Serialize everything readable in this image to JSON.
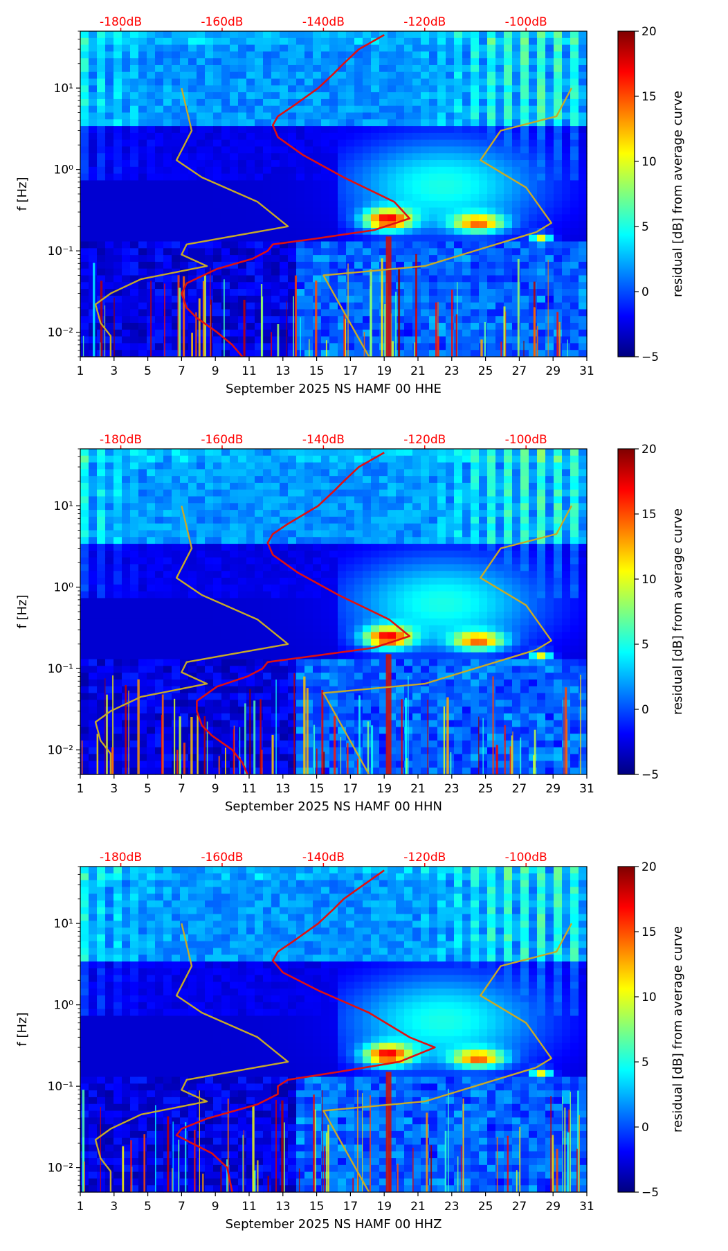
{
  "colors": {
    "colormap": [
      "#00007f",
      "#0000ff",
      "#007fff",
      "#00ffff",
      "#7fff7f",
      "#ffff00",
      "#ff7f00",
      "#ff0000",
      "#7f0000"
    ],
    "model_curves": "#c8aa28",
    "measured_curve": "#e01010",
    "top_labels": "#ff0000"
  },
  "chart_data": [
    {
      "type": "heatmap",
      "xlabel": "September 2025 NS HAMF 00 HHE",
      "ylabel": "f [Hz]",
      "x_ticks": [
        "1",
        "3",
        "5",
        "7",
        "9",
        "11",
        "13",
        "15",
        "17",
        "19",
        "21",
        "23",
        "25",
        "27",
        "29",
        "31"
      ],
      "xlim": [
        1,
        31
      ],
      "y_ticks": [
        "10⁻²",
        "10⁻¹",
        "10⁰",
        "10¹"
      ],
      "ylim": [
        0.005,
        50
      ],
      "y_scale": "log",
      "top_ticks": [
        "-180dB",
        "-160dB",
        "-140dB",
        "-120dB",
        "-100dB"
      ],
      "top_range_dB": [
        -188,
        -88
      ],
      "colorbar": {
        "label": "residual [dB] from average curve",
        "range": [
          -5,
          20
        ],
        "ticks": [
          "20",
          "15",
          "10",
          "5",
          "0",
          "−5"
        ]
      },
      "series": [
        {
          "freq": [
            10,
            3,
            1.3,
            0.8,
            0.4,
            0.2,
            0.12,
            0.09,
            0.065,
            0.045,
            0.03,
            0.022,
            0.013,
            0.009,
            0.005
          ],
          "level_dB": [
            -168,
            -166,
            -169,
            -164,
            -153,
            -147,
            -167,
            -168,
            -163,
            -176,
            -182,
            -185,
            -184,
            -182,
            -182
          ]
        },
        {
          "freq": [
            10,
            4.5,
            3,
            1.3,
            0.6,
            0.22,
            0.17,
            0.065,
            0.05,
            0.005
          ],
          "level_dB": [
            -91,
            -94,
            -105,
            -109,
            -100,
            -95,
            -98,
            -120,
            -140,
            -131
          ]
        },
        {
          "freq": [
            45,
            30,
            20,
            15,
            10,
            6,
            4.5,
            3.5,
            2.5,
            1.5,
            0.8,
            0.4,
            0.25,
            0.18,
            0.14,
            0.12,
            0.1,
            0.08,
            0.06,
            0.04,
            0.03,
            0.02,
            0.015,
            0.01,
            0.007,
            0.005
          ],
          "level_dB": [
            -128,
            -133,
            -136,
            -138,
            -141,
            -146,
            -149,
            -150,
            -149,
            -144,
            -136,
            -126,
            -123,
            -130,
            -142,
            -150,
            -151,
            -154,
            -161,
            -167,
            -168,
            -167,
            -165,
            -161,
            -158,
            -156
          ]
        }
      ]
    },
    {
      "type": "heatmap",
      "xlabel": "September 2025 NS HAMF 00 HHN",
      "ylabel": "f [Hz]",
      "x_ticks": [
        "1",
        "3",
        "5",
        "7",
        "9",
        "11",
        "13",
        "15",
        "17",
        "19",
        "21",
        "23",
        "25",
        "27",
        "29",
        "31"
      ],
      "xlim": [
        1,
        31
      ],
      "y_ticks": [
        "10⁻²",
        "10⁻¹",
        "10⁰",
        "10¹"
      ],
      "ylim": [
        0.005,
        50
      ],
      "y_scale": "log",
      "top_ticks": [
        "-180dB",
        "-160dB",
        "-140dB",
        "-120dB",
        "-100dB"
      ],
      "top_range_dB": [
        -188,
        -88
      ],
      "colorbar": {
        "label": "residual [dB] from average curve",
        "range": [
          -5,
          20
        ],
        "ticks": [
          "20",
          "15",
          "10",
          "5",
          "0",
          "−5"
        ]
      },
      "series": [
        {
          "freq": [
            10,
            3,
            1.3,
            0.8,
            0.4,
            0.2,
            0.12,
            0.09,
            0.065,
            0.045,
            0.03,
            0.022,
            0.013,
            0.009,
            0.005
          ],
          "level_dB": [
            -168,
            -166,
            -169,
            -164,
            -153,
            -147,
            -167,
            -168,
            -163,
            -176,
            -182,
            -185,
            -184,
            -182,
            -182
          ]
        },
        {
          "freq": [
            10,
            4.5,
            3,
            1.3,
            0.6,
            0.22,
            0.17,
            0.065,
            0.05,
            0.005
          ],
          "level_dB": [
            -91,
            -94,
            -105,
            -109,
            -100,
            -95,
            -98,
            -120,
            -140,
            -131
          ]
        },
        {
          "freq": [
            45,
            30,
            20,
            15,
            10,
            6,
            4.5,
            3.5,
            2.5,
            1.5,
            0.8,
            0.4,
            0.25,
            0.18,
            0.14,
            0.12,
            0.1,
            0.08,
            0.06,
            0.04,
            0.03,
            0.02,
            0.015,
            0.01,
            0.007,
            0.005
          ],
          "level_dB": [
            -128,
            -133,
            -136,
            -138,
            -141,
            -147,
            -150,
            -151,
            -150,
            -145,
            -137,
            -127,
            -123,
            -130,
            -143,
            -151,
            -152,
            -155,
            -161,
            -165,
            -165,
            -164,
            -162,
            -158,
            -156,
            -155
          ]
        }
      ]
    },
    {
      "type": "heatmap",
      "xlabel": "September 2025 NS HAMF 00 HHZ",
      "ylabel": "f [Hz]",
      "x_ticks": [
        "1",
        "3",
        "5",
        "7",
        "9",
        "11",
        "13",
        "15",
        "17",
        "19",
        "21",
        "23",
        "25",
        "27",
        "29",
        "31"
      ],
      "xlim": [
        1,
        31
      ],
      "y_ticks": [
        "10⁻²",
        "10⁻¹",
        "10⁰",
        "10¹"
      ],
      "ylim": [
        0.005,
        50
      ],
      "y_scale": "log",
      "top_ticks": [
        "-180dB",
        "-160dB",
        "-140dB",
        "-120dB",
        "-100dB"
      ],
      "top_range_dB": [
        -188,
        -88
      ],
      "colorbar": {
        "label": "residual [dB] from average curve",
        "range": [
          -5,
          20
        ],
        "ticks": [
          "20",
          "15",
          "10",
          "5",
          "0",
          "−5"
        ]
      },
      "series": [
        {
          "freq": [
            10,
            3,
            1.3,
            0.8,
            0.4,
            0.2,
            0.12,
            0.09,
            0.065,
            0.045,
            0.03,
            0.022,
            0.013,
            0.009,
            0.005
          ],
          "level_dB": [
            -168,
            -166,
            -169,
            -164,
            -153,
            -147,
            -167,
            -168,
            -163,
            -176,
            -182,
            -185,
            -184,
            -182,
            -182
          ]
        },
        {
          "freq": [
            10,
            4.5,
            3,
            1.3,
            0.6,
            0.22,
            0.17,
            0.065,
            0.05,
            0.005
          ],
          "level_dB": [
            -91,
            -94,
            -105,
            -109,
            -100,
            -95,
            -98,
            -120,
            -140,
            -131
          ]
        },
        {
          "freq": [
            45,
            30,
            20,
            15,
            10,
            6,
            4.5,
            3.5,
            2.5,
            1.5,
            0.8,
            0.4,
            0.3,
            0.2,
            0.15,
            0.12,
            0.1,
            0.08,
            0.06,
            0.04,
            0.03,
            0.025,
            0.02,
            0.015,
            0.01,
            0.005
          ],
          "level_dB": [
            -128,
            -132,
            -136,
            -138,
            -141,
            -146,
            -149,
            -150,
            -148,
            -141,
            -131,
            -123,
            -118,
            -125,
            -137,
            -147,
            -149,
            -149,
            -153,
            -163,
            -168,
            -169,
            -166,
            -162,
            -159,
            -158
          ]
        }
      ]
    }
  ]
}
